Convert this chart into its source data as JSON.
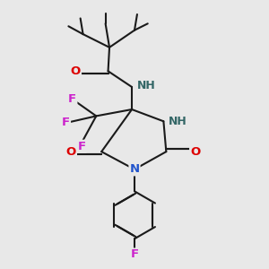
{
  "background_color": "#e8e8e8",
  "bond_color": "#1a1a1a",
  "bond_width": 1.5,
  "fig_width": 3.0,
  "fig_height": 3.0,
  "dpi": 100,
  "colors": {
    "O": "#dd0000",
    "N": "#2255cc",
    "NH": "#336666",
    "H": "#336666",
    "F": "#cc22cc",
    "C": "#1a1a1a"
  }
}
